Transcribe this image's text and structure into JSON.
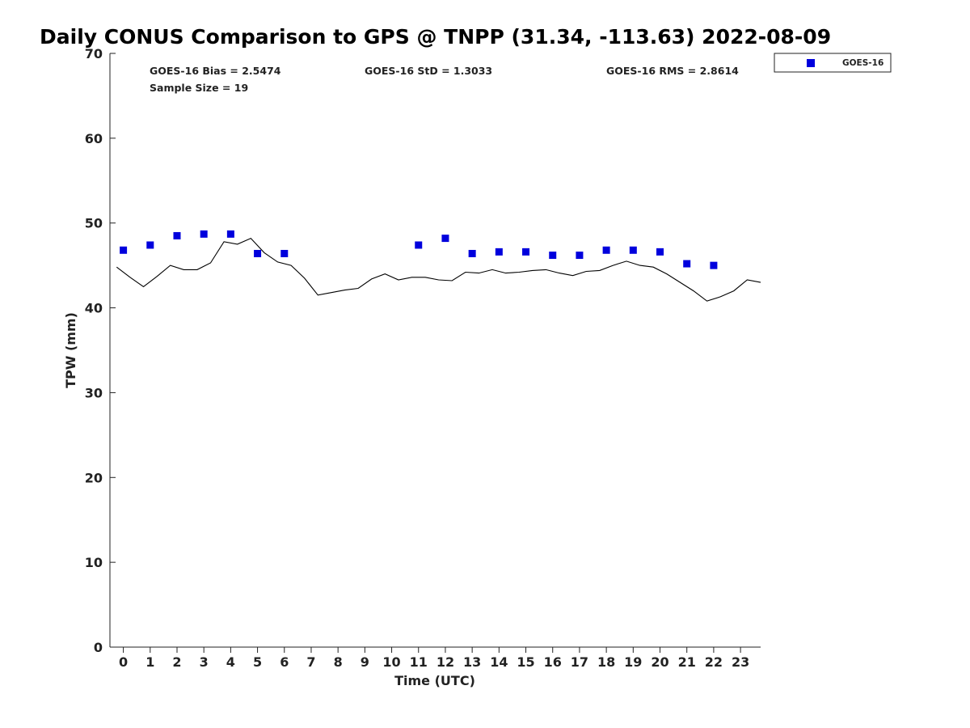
{
  "chart_data": {
    "type": "scatter",
    "title": "Daily CONUS Comparison to GPS @ TNPP (31.34, -113.63) 2022-08-09",
    "xlabel": "Time (UTC)",
    "ylabel": "TPW (mm)",
    "xlim": [
      -0.5,
      23.75
    ],
    "ylim": [
      0,
      70
    ],
    "xticks": [
      "0",
      "1",
      "2",
      "3",
      "4",
      "5",
      "6",
      "7",
      "8",
      "9",
      "10",
      "11",
      "12",
      "13",
      "14",
      "15",
      "16",
      "17",
      "18",
      "19",
      "20",
      "21",
      "22",
      "23"
    ],
    "yticks": [
      "0",
      "10",
      "20",
      "30",
      "40",
      "50",
      "60",
      "70"
    ],
    "stats": {
      "bias": "GOES-16 Bias = 2.5474",
      "std": "GOES-16 StD = 1.3033",
      "rms": "GOES-16 RMS = 2.8614",
      "sample": "Sample Size = 19"
    },
    "legend": {
      "position": "top-right-outside",
      "entries": [
        "GOES-16"
      ]
    },
    "grid": false,
    "series": [
      {
        "name": "GOES-16",
        "kind": "marker",
        "color": "#0000dd",
        "x": [
          0,
          1,
          2,
          3,
          4,
          5,
          6,
          11,
          12,
          13,
          14,
          15,
          16,
          17,
          18,
          19,
          20,
          21,
          22
        ],
        "y": [
          46.8,
          47.4,
          48.5,
          48.7,
          48.7,
          46.4,
          46.4,
          47.4,
          48.2,
          46.4,
          46.6,
          46.6,
          46.2,
          46.2,
          46.8,
          46.8,
          46.6,
          45.2,
          45.0
        ]
      },
      {
        "kind": "line",
        "color": "#000000",
        "x": [
          -0.25,
          0.25,
          0.75,
          1.25,
          1.75,
          2.25,
          2.75,
          3.25,
          3.75,
          4.25,
          4.75,
          5.25,
          5.75,
          6.25,
          6.75,
          7.25,
          7.75,
          8.25,
          8.75,
          9.25,
          9.75,
          10.25,
          10.75,
          11.25,
          11.75,
          12.25,
          12.75,
          13.25,
          13.75,
          14.25,
          14.75,
          15.25,
          15.75,
          16.25,
          16.75,
          17.25,
          17.75,
          18.25,
          18.75,
          19.25,
          19.75,
          20.25,
          20.75,
          21.25,
          21.75,
          22.25,
          22.75,
          23.25,
          23.75
        ],
        "y": [
          44.8,
          43.6,
          42.5,
          43.7,
          45.0,
          44.5,
          44.5,
          45.3,
          47.8,
          47.5,
          48.2,
          46.5,
          45.4,
          45.0,
          43.5,
          41.5,
          41.8,
          42.1,
          42.3,
          43.4,
          44.0,
          43.3,
          43.6,
          43.6,
          43.3,
          43.2,
          44.2,
          44.1,
          44.5,
          44.1,
          44.2,
          44.4,
          44.5,
          44.1,
          43.8,
          44.3,
          44.4,
          45.0,
          45.5,
          45.0,
          44.8,
          44.0,
          43.0,
          42.0,
          40.8,
          41.3,
          42.0,
          43.3,
          43.0
        ]
      }
    ]
  }
}
